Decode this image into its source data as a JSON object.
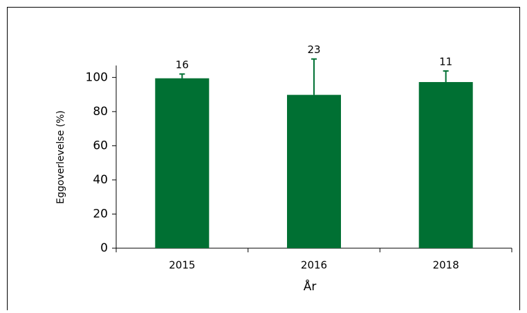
{
  "chart_data": {
    "type": "bar",
    "x_label": "År",
    "y_label": "Eggoverlevelse (%)",
    "categories": [
      "2015",
      "2016",
      "2018"
    ],
    "values": [
      99.5,
      89.8,
      97.3
    ],
    "errors": [
      2.5,
      21,
      6.5
    ],
    "sample_sizes": [
      16,
      23,
      11
    ],
    "color": "#007033",
    "ylim": [
      0,
      107
    ],
    "yticks": [
      0,
      20,
      40,
      60,
      80,
      100
    ],
    "grid": false
  }
}
